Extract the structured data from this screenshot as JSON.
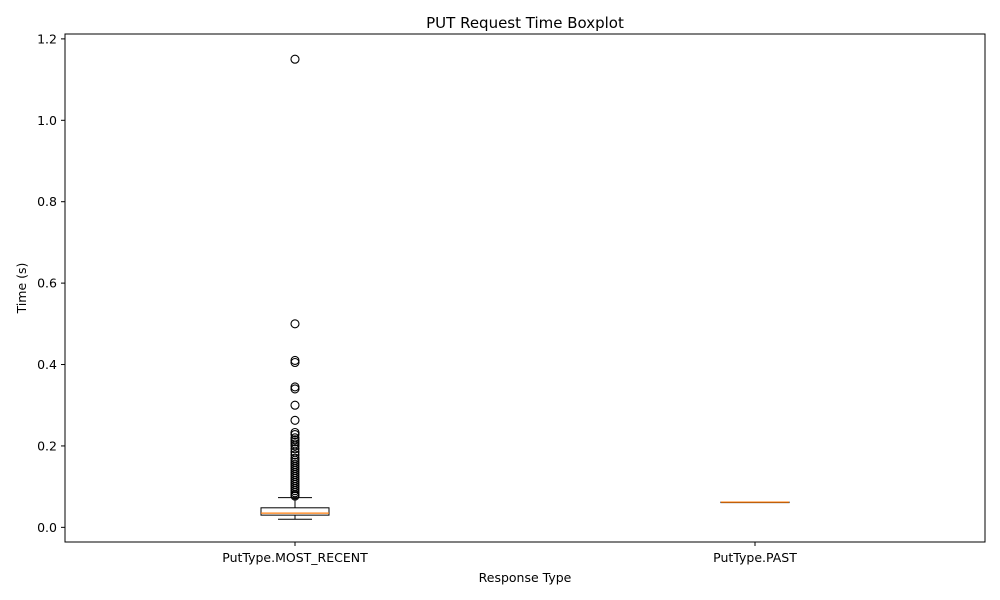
{
  "chart_data": {
    "type": "boxplot",
    "title": "PUT Request Time Boxplot",
    "xlabel": "Response Type",
    "ylabel": "Time (s)",
    "ylim": [
      -0.036,
      1.212
    ],
    "yticks": [
      "0.0",
      "0.2",
      "0.4",
      "0.6",
      "0.8",
      "1.0",
      "1.2"
    ],
    "ytick_values": [
      0.0,
      0.2,
      0.4,
      0.6,
      0.8,
      1.0,
      1.2
    ],
    "grid": false,
    "colors": {
      "box": "#000000",
      "median": "#ff7f0e",
      "outlier": "#000000"
    },
    "categories": [
      "PutType.MOST_RECENT",
      "PutType.PAST"
    ],
    "boxes": [
      {
        "category": "PutType.MOST_RECENT",
        "whisker_low": 0.02,
        "q1": 0.03,
        "median": 0.035,
        "q3": 0.048,
        "whisker_high": 0.073,
        "outliers": [
          1.15,
          0.5,
          0.41,
          0.405,
          0.345,
          0.34,
          0.3,
          0.263,
          0.233,
          0.228,
          0.22,
          0.215,
          0.21,
          0.205,
          0.2,
          0.193,
          0.185,
          0.178,
          0.17,
          0.165,
          0.16,
          0.155,
          0.15,
          0.145,
          0.14,
          0.135,
          0.13,
          0.125,
          0.12,
          0.115,
          0.11,
          0.105,
          0.1,
          0.095,
          0.09,
          0.085,
          0.08,
          0.077
        ]
      },
      {
        "category": "PutType.PAST",
        "whisker_low": 0.062,
        "q1": 0.062,
        "median": 0.062,
        "q3": 0.062,
        "whisker_high": 0.062,
        "outliers": []
      }
    ]
  }
}
